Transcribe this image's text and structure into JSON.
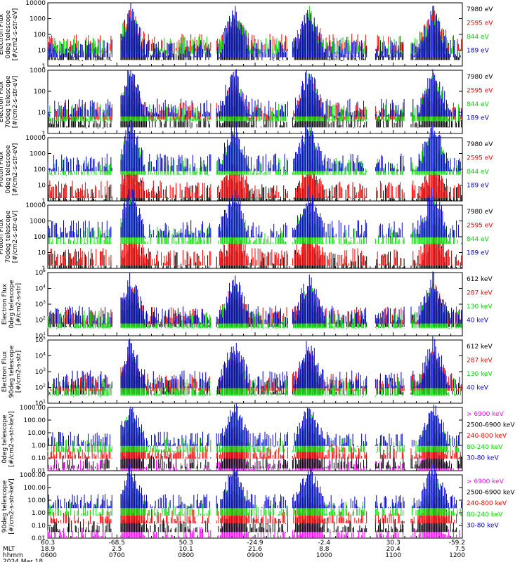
{
  "chart_data": {
    "type": "line",
    "panels": [
      {
        "ylabel": [
          "Electron Flux",
          "0deg telescope",
          "[#/cm2-s-str-eV]"
        ],
        "scale": "log",
        "yticks": [
          "1",
          "10",
          "100",
          "1000",
          "10000"
        ],
        "ylim": [
          1,
          10000
        ],
        "series": [
          {
            "name": "7980 eV",
            "color": "#000000",
            "base": 8
          },
          {
            "name": "2595 eV",
            "color": "#ff0000",
            "base": 30
          },
          {
            "name": "844 eV",
            "color": "#00dd00",
            "base": 20
          },
          {
            "name": "189 eV",
            "color": "#0000cc",
            "base": 12
          }
        ]
      },
      {
        "ylabel": [
          "Electron Flux",
          "70deg telescope",
          "[#/cm2-s-str-eV]"
        ],
        "scale": "log",
        "yticks": [
          "1",
          "10",
          "100",
          "1000"
        ],
        "ylim": [
          1,
          10000
        ],
        "series": [
          {
            "name": "7980 eV",
            "color": "#000000",
            "base": 8
          },
          {
            "name": "2595 eV",
            "color": "#ff0000",
            "base": 25
          },
          {
            "name": "844 eV",
            "color": "#00dd00",
            "base": 20
          },
          {
            "name": "189 eV",
            "color": "#0000cc",
            "base": 40
          }
        ]
      },
      {
        "ylabel": [
          "Proton Flux",
          "0deg telescope",
          "[#/cm2-s-str-eV]"
        ],
        "scale": "log",
        "yticks": [
          "1",
          "10",
          "100",
          "1000",
          "10000"
        ],
        "ylim": [
          1,
          10000
        ],
        "series": [
          {
            "name": "7980 eV",
            "color": "#000000",
            "base": 3
          },
          {
            "name": "2595 eV",
            "color": "#ff0000",
            "base": 5
          },
          {
            "name": "844 eV",
            "color": "#00dd00",
            "base": 150
          },
          {
            "name": "189 eV",
            "color": "#0000cc",
            "base": 250
          }
        ]
      },
      {
        "ylabel": [
          "Proton Flux",
          "70deg telescope",
          "[#/cm2-s-str-eV]"
        ],
        "scale": "log",
        "yticks": [
          "1",
          "10",
          "100",
          "1000",
          "10000"
        ],
        "ylim": [
          1,
          10000
        ],
        "series": [
          {
            "name": "7980 eV",
            "color": "#000000",
            "base": 3
          },
          {
            "name": "2595 eV",
            "color": "#ff0000",
            "base": 5
          },
          {
            "name": "844 eV",
            "color": "#00dd00",
            "base": 120
          },
          {
            "name": "189 eV",
            "color": "#0000cc",
            "base": 300
          }
        ]
      },
      {
        "ylabel": [
          "MEPED",
          "Electron Flux",
          "0deg telescope",
          "[#/cm2-s-str]"
        ],
        "scale": "log",
        "yticks": [
          "10^1",
          "10^2",
          "10^3",
          "10^4",
          "10^5"
        ],
        "ylim": [
          10,
          100000
        ],
        "series": [
          {
            "name": "612 keV",
            "color": "#000000",
            "base": 120
          },
          {
            "name": "287 keV",
            "color": "#ff0000",
            "base": 180
          },
          {
            "name": "130 keV",
            "color": "#00dd00",
            "base": 100
          },
          {
            "name": "40 keV",
            "color": "#0000cc",
            "base": 200
          }
        ]
      },
      {
        "ylabel": [
          "MEPED",
          "Electron Flux",
          "90deg telescope",
          "[#/cm2-s-str]"
        ],
        "scale": "log",
        "yticks": [
          "10^1",
          "10^2",
          "10^3",
          "10^4",
          "10^5"
        ],
        "ylim": [
          10,
          100000
        ],
        "series": [
          {
            "name": "612 keV",
            "color": "#000000",
            "base": 120
          },
          {
            "name": "287 keV",
            "color": "#ff0000",
            "base": 200
          },
          {
            "name": "130 keV",
            "color": "#00dd00",
            "base": 100
          },
          {
            "name": "40 keV",
            "color": "#0000cc",
            "base": 300
          }
        ]
      },
      {
        "ylabel": [
          "0deg telescope",
          "[#/cm2-s-str-keV]"
        ],
        "scale": "log",
        "yticks": [
          "0.01",
          "0.10",
          "1.00",
          "10.00",
          "100.00",
          "1000.00"
        ],
        "ylim": [
          0.01,
          1000
        ],
        "series": [
          {
            "name": "> 6900 keV",
            "color": "#ff00ff",
            "base": 0.02
          },
          {
            "name": "2500-6900 keV",
            "color": "#000000",
            "base": 0.05
          },
          {
            "name": "240-800 keV",
            "color": "#ff0000",
            "base": 0.3
          },
          {
            "name": "80-240 keV",
            "color": "#00dd00",
            "base": 1.0
          },
          {
            "name": "30-80 keV",
            "color": "#0000cc",
            "base": 3.0
          }
        ]
      },
      {
        "ylabel": [
          "90deg telescope",
          "[#/cm2-s-str-keV]"
        ],
        "scale": "log",
        "yticks": [
          "0.01",
          "0.10",
          "1.00",
          "10.00",
          "100.00",
          "1000.00"
        ],
        "ylim": [
          0.01,
          1000
        ],
        "series": [
          {
            "name": "> 6900 keV",
            "color": "#ff00ff",
            "base": 0.02
          },
          {
            "name": "2500-6900 keV",
            "color": "#000000",
            "base": 0.1
          },
          {
            "name": "240-800 keV",
            "color": "#ff0000",
            "base": 0.5
          },
          {
            "name": "80-240 keV",
            "color": "#00dd00",
            "base": 2.0
          },
          {
            "name": "30-80 keV",
            "color": "#0000cc",
            "base": 8.0
          }
        ]
      }
    ],
    "bursts": [
      0.2,
      0.45,
      0.63,
      0.93
    ],
    "x_axis": {
      "row_labels": [
        "MLT",
        "hhmm",
        "2024 Mar 18"
      ],
      "ticks": [
        {
          "lat": "60.3",
          "mlt": "18.9",
          "hhmm": "0600"
        },
        {
          "lat": "-68.5",
          "mlt": "2.5",
          "hhmm": "0700"
        },
        {
          "lat": "50.3",
          "mlt": "10.1",
          "hhmm": "0800"
        },
        {
          "lat": "-24.9",
          "mlt": "21.6",
          "hhmm": "0900"
        },
        {
          "lat": "-2.4",
          "mlt": "8.8",
          "hhmm": "1000"
        },
        {
          "lat": "30.3",
          "mlt": "20.4",
          "hhmm": "1100"
        },
        {
          "lat": "-59.2",
          "mlt": "7.5",
          "hhmm": "1200"
        }
      ]
    }
  }
}
